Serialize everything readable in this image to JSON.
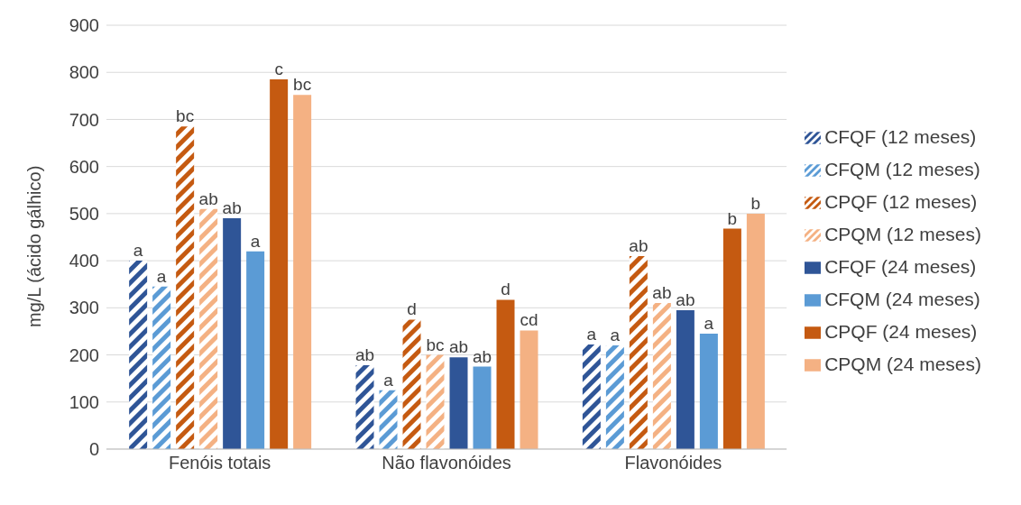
{
  "chart_data": {
    "type": "bar",
    "ylabel": "mg/L (ácido gálhico)",
    "categories": [
      "Fenóis totais",
      "Não flavonóides",
      "Flavonóides"
    ],
    "series": [
      {
        "name": "CFQF (12 meses)",
        "color": "#2f5597",
        "values": [
          400,
          178,
          222
        ],
        "value_labels": [
          "a",
          "ab",
          "a"
        ]
      },
      {
        "name": "CFQM (12 meses)",
        "color": "#5b9bd5",
        "values": [
          345,
          125,
          220
        ],
        "value_labels": [
          "a",
          "a",
          "a"
        ]
      },
      {
        "name": "CPQF (12 meses)",
        "color": "#c55a11",
        "values": [
          685,
          275,
          410
        ],
        "value_labels": [
          "bc",
          "d",
          "ab"
        ]
      },
      {
        "name": "CPQM (12 meses)",
        "color": "#f4b183",
        "values": [
          510,
          200,
          310
        ],
        "value_labels": [
          "ab",
          "bc",
          "ab"
        ]
      },
      {
        "name": "CFQF (24 meses)",
        "color": "#2f5597",
        "values": [
          490,
          195,
          295
        ],
        "value_labels": [
          "ab",
          "ab",
          "ab"
        ]
      },
      {
        "name": "CFQM (24 meses)",
        "color": "#5b9bd5",
        "values": [
          420,
          175,
          245
        ],
        "value_labels": [
          "a",
          "ab",
          "a"
        ]
      },
      {
        "name": "CPQF (24 meses)",
        "color": "#c55a11",
        "values": [
          785,
          317,
          468
        ],
        "value_labels": [
          "c",
          "d",
          "b"
        ]
      },
      {
        "name": "CPQM (24 meses)",
        "color": "#f4b183",
        "values": [
          752,
          252,
          500
        ],
        "value_labels": [
          "bc",
          "cd",
          "b"
        ]
      }
    ],
    "ylim": [
      0,
      900
    ],
    "yticks": [
      0,
      100,
      200,
      300,
      400,
      500,
      600,
      700,
      800,
      900
    ],
    "grid": "y",
    "legend": "right"
  }
}
